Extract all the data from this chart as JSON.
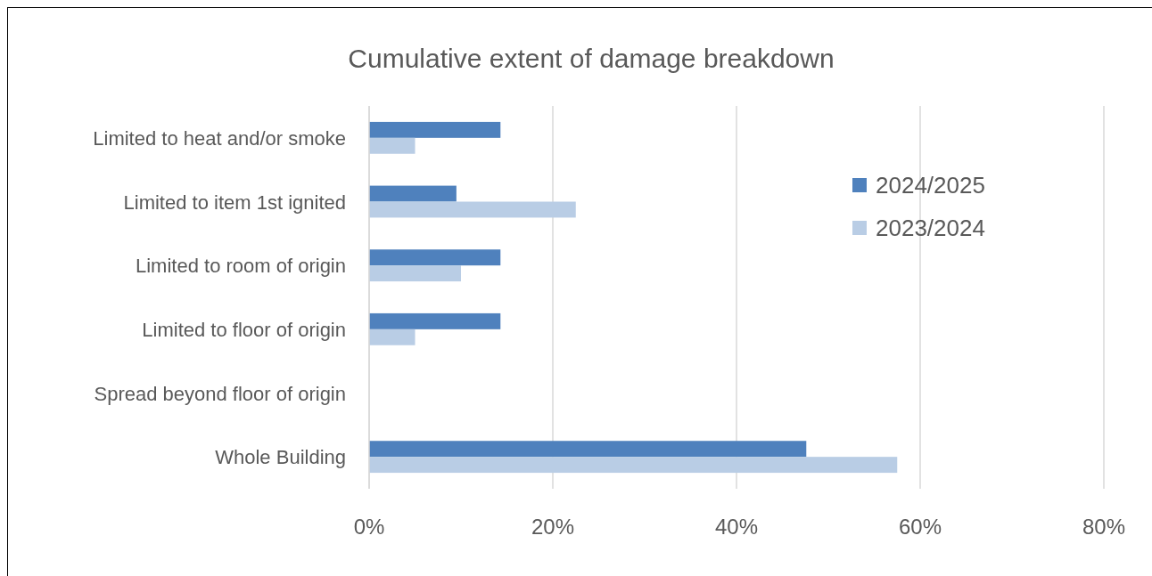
{
  "chart_data": {
    "type": "bar",
    "orientation": "horizontal",
    "title": "Cumulative extent of damage breakdown",
    "categories": [
      "Limited to heat and/or smoke",
      "Limited to item 1st ignited",
      "Limited to room of origin",
      "Limited to floor of origin",
      "Spread beyond floor of origin",
      "Whole Building"
    ],
    "series": [
      {
        "name": "2024/2025",
        "color": "#4f81bd",
        "values": [
          14.3,
          9.5,
          14.3,
          14.3,
          0,
          47.6
        ]
      },
      {
        "name": "2023/2024",
        "color": "#b9cde5",
        "values": [
          5,
          22.5,
          10,
          5,
          0,
          57.5
        ]
      }
    ],
    "xlim": [
      0,
      80
    ],
    "xticks": [
      {
        "value": 0,
        "label": "0%"
      },
      {
        "value": 20,
        "label": "20%"
      },
      {
        "value": 40,
        "label": "40%"
      },
      {
        "value": 60,
        "label": "60%"
      },
      {
        "value": 80,
        "label": "80%"
      }
    ],
    "grid": "x",
    "legend": "right"
  }
}
